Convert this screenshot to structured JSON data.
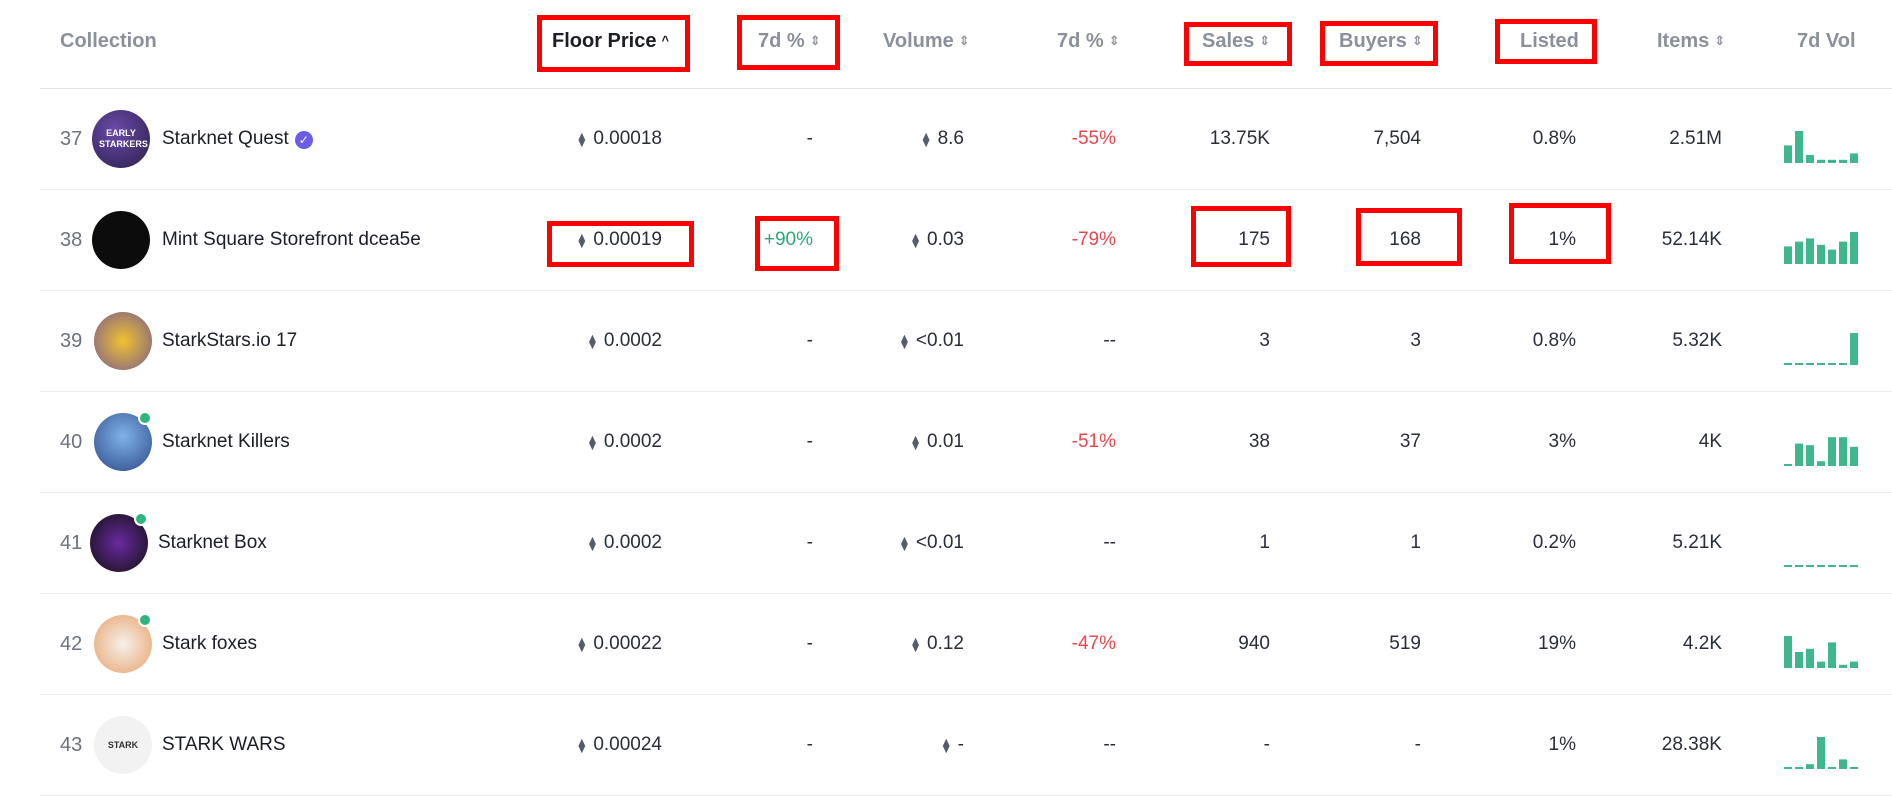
{
  "header": {
    "collection": "Collection",
    "floor_price": "Floor Price",
    "change_7d_a": "7d %",
    "volume": "Volume",
    "change_7d_b": "7d %",
    "sales": "Sales",
    "buyers": "Buyers",
    "listed": "Listed",
    "items": "Items",
    "vol_7d": "7d Vol"
  },
  "icons": {
    "eth": "ethereum-icon",
    "sort": "sort-arrows-icon",
    "sort_asc": "chevron-up-icon",
    "verified": "verified-check-icon"
  },
  "colors": {
    "negative": "#e5484d",
    "positive": "#2ea879",
    "bar": "#3fb68b",
    "highlight": "#ff0000"
  },
  "rows": [
    {
      "rank": "37",
      "name": "Starknet Quest",
      "avatar_text": "EARLY STARKERS",
      "verified": true,
      "status_dot": false,
      "floor": "0.00018",
      "change_a": "-",
      "volume": "8.6",
      "change_b": "-55%",
      "change_b_tone": "neg",
      "sales": "13.75K",
      "buyers": "7,504",
      "listed": "0.8%",
      "items": "2.51M",
      "vol_bars": [
        0.55,
        1.0,
        0.25,
        0.1,
        0.1,
        0.1,
        0.3
      ]
    },
    {
      "rank": "38",
      "name": "Mint Square Storefront dcea5e",
      "avatar_text": "",
      "verified": false,
      "status_dot": false,
      "floor": "0.00019",
      "change_a": "+90%",
      "change_a_tone": "pos",
      "volume": "0.03",
      "change_b": "-79%",
      "change_b_tone": "neg",
      "sales": "175",
      "buyers": "168",
      "listed": "1%",
      "items": "52.14K",
      "vol_bars": [
        0.55,
        0.7,
        0.8,
        0.6,
        0.45,
        0.7,
        1.0
      ]
    },
    {
      "rank": "39",
      "name": "StarkStars.io 17",
      "avatar_text": "",
      "verified": false,
      "status_dot": false,
      "floor": "0.0002",
      "change_a": "-",
      "volume": "<0.01",
      "change_b": "--",
      "change_b_tone": "none",
      "sales": "3",
      "buyers": "3",
      "listed": "0.8%",
      "items": "5.32K",
      "vol_bars": [
        0,
        0,
        0,
        0,
        0,
        0,
        1.0
      ]
    },
    {
      "rank": "40",
      "name": "Starknet Killers",
      "avatar_text": "",
      "verified": false,
      "status_dot": true,
      "floor": "0.0002",
      "change_a": "-",
      "volume": "0.01",
      "change_b": "-51%",
      "change_b_tone": "neg",
      "sales": "38",
      "buyers": "37",
      "listed": "3%",
      "items": "4K",
      "vol_bars": [
        0.05,
        0.7,
        0.65,
        0.15,
        0.9,
        0.9,
        0.6
      ]
    },
    {
      "rank": "41",
      "name": "Starknet Box",
      "avatar_text": "",
      "verified": false,
      "status_dot": true,
      "floor": "0.0002",
      "change_a": "-",
      "volume": "<0.01",
      "change_b": "--",
      "change_b_tone": "none",
      "sales": "1",
      "buyers": "1",
      "listed": "0.2%",
      "items": "5.21K",
      "vol_bars": [
        0,
        0,
        0,
        0,
        0,
        0,
        0
      ]
    },
    {
      "rank": "42",
      "name": "Stark foxes",
      "avatar_text": "",
      "verified": false,
      "status_dot": true,
      "floor": "0.00022",
      "change_a": "-",
      "volume": "0.12",
      "change_b": "-47%",
      "change_b_tone": "neg",
      "sales": "940",
      "buyers": "519",
      "listed": "19%",
      "items": "4.2K",
      "vol_bars": [
        1.0,
        0.5,
        0.6,
        0.2,
        0.8,
        0.1,
        0.2
      ]
    },
    {
      "rank": "43",
      "name": "STARK WARS",
      "avatar_text": "STARK",
      "verified": false,
      "status_dot": false,
      "floor": "0.00024",
      "change_a": "-",
      "volume": "-",
      "change_b": "--",
      "change_b_tone": "none",
      "sales": "-",
      "buyers": "-",
      "listed": "1%",
      "items": "28.38K",
      "vol_bars": [
        0.05,
        0.05,
        0.15,
        1.0,
        0.05,
        0.3,
        0.05
      ]
    }
  ]
}
